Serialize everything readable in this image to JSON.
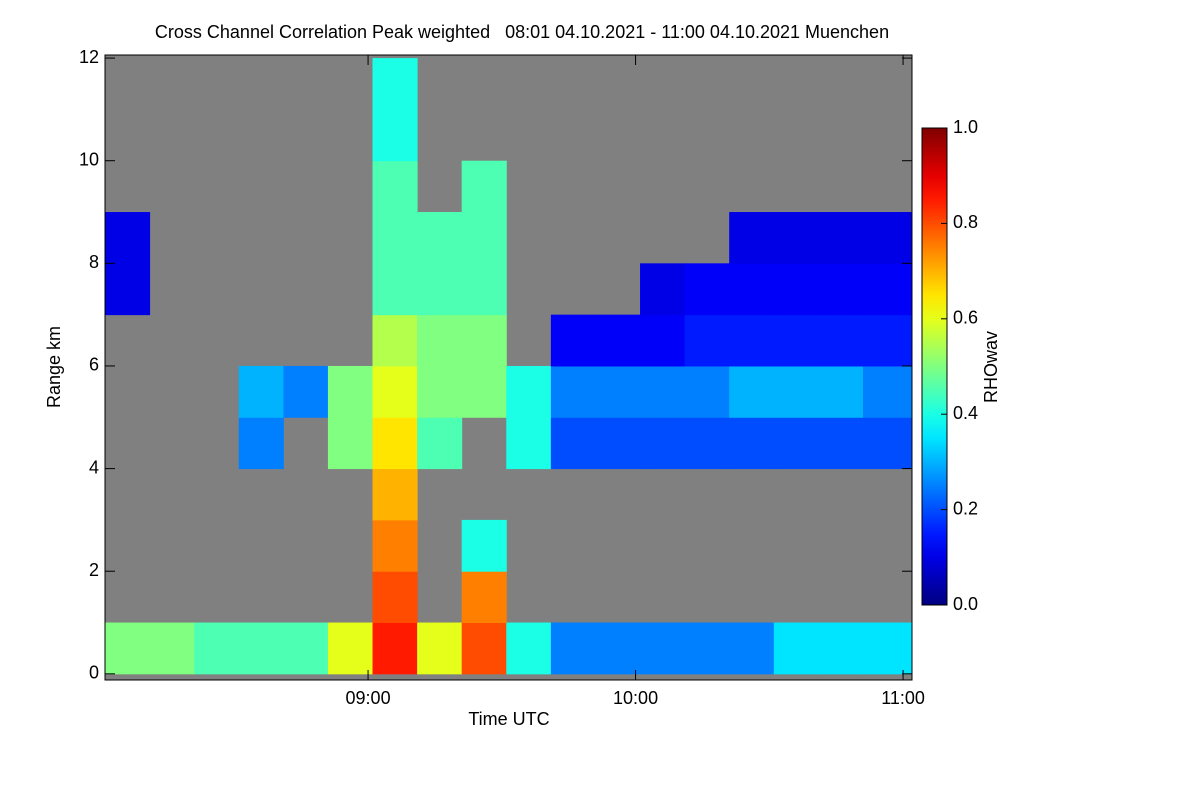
{
  "chart_data": {
    "type": "heatmap",
    "title": "Cross Channel Correlation Peak weighted   08:01 04.10.2021 - 11:00 04.10.2021 Muenchen",
    "x_label": "Time UTC",
    "y_label": "Range km",
    "xlim": [
      481,
      662
    ],
    "ylim": [
      -0.12,
      12.06
    ],
    "xticks": [
      {
        "value": 540,
        "label": "09:00"
      },
      {
        "value": 600,
        "label": "10:00"
      },
      {
        "value": 660,
        "label": "11:00"
      }
    ],
    "yticks": [
      0,
      2,
      4,
      6,
      8,
      10,
      12
    ],
    "xbins": [
      481,
      491,
      501,
      511,
      521,
      531,
      541,
      551,
      561,
      571,
      581,
      591,
      601,
      611,
      621,
      631,
      641,
      651,
      662
    ],
    "ybins": [
      0,
      1,
      2,
      3,
      4,
      5,
      6,
      7,
      8,
      9,
      10,
      11,
      12
    ],
    "z": [
      [
        0.5,
        0.5,
        0.45,
        0.45,
        0.45,
        0.6,
        0.85,
        0.6,
        0.8,
        0.4,
        0.25,
        0.25,
        0.25,
        0.25,
        0.25,
        0.35,
        0.35,
        0.35
      ],
      [
        null,
        null,
        null,
        null,
        null,
        null,
        0.8,
        null,
        0.75,
        null,
        null,
        null,
        null,
        null,
        null,
        null,
        null,
        null
      ],
      [
        null,
        null,
        null,
        null,
        null,
        null,
        0.75,
        null,
        0.4,
        null,
        null,
        null,
        null,
        null,
        null,
        null,
        null,
        null
      ],
      [
        null,
        null,
        null,
        null,
        null,
        null,
        0.7,
        null,
        null,
        null,
        null,
        null,
        null,
        null,
        null,
        null,
        null,
        null
      ],
      [
        null,
        null,
        null,
        0.25,
        null,
        0.5,
        0.65,
        0.45,
        null,
        0.4,
        0.2,
        0.2,
        0.2,
        0.2,
        0.2,
        0.2,
        0.2,
        0.2
      ],
      [
        null,
        null,
        null,
        0.3,
        0.25,
        0.5,
        0.6,
        0.5,
        0.5,
        0.4,
        0.25,
        0.25,
        0.25,
        0.25,
        0.3,
        0.3,
        0.3,
        0.25
      ],
      [
        null,
        null,
        null,
        null,
        null,
        null,
        0.55,
        0.5,
        0.5,
        null,
        0.12,
        0.12,
        0.12,
        0.15,
        0.15,
        0.15,
        0.15,
        0.15
      ],
      [
        0.1,
        null,
        null,
        null,
        null,
        null,
        0.45,
        0.45,
        0.45,
        null,
        null,
        null,
        0.1,
        0.12,
        0.12,
        0.12,
        0.12,
        0.12
      ],
      [
        0.1,
        null,
        null,
        null,
        null,
        null,
        0.45,
        0.45,
        0.45,
        null,
        null,
        null,
        null,
        null,
        0.1,
        0.1,
        0.1,
        0.1
      ],
      [
        null,
        null,
        null,
        null,
        null,
        null,
        0.45,
        null,
        0.45,
        null,
        null,
        null,
        null,
        null,
        null,
        null,
        null,
        null
      ],
      [
        null,
        null,
        null,
        null,
        null,
        null,
        0.4,
        null,
        null,
        null,
        null,
        null,
        null,
        null,
        null,
        null,
        null,
        null
      ],
      [
        null,
        null,
        null,
        null,
        null,
        null,
        0.4,
        null,
        null,
        null,
        null,
        null,
        null,
        null,
        null,
        null,
        null,
        null
      ]
    ],
    "colormap": "jet",
    "missing_color": "#808080",
    "colorbar": {
      "label": "RHOwav",
      "zlim": [
        0,
        1
      ],
      "ticks": [
        {
          "value": 0,
          "label": "0.0"
        },
        0.2,
        0.4,
        0.6,
        0.8,
        {
          "value": 1,
          "label": "1.0"
        }
      ]
    }
  }
}
